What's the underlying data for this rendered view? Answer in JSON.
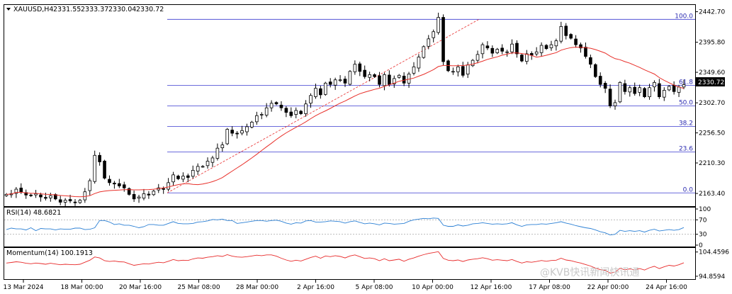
{
  "header": {
    "symbol": "XAUUSD,H4",
    "open": "2331.55",
    "high": "2333.37",
    "low": "2330.04",
    "close": "2330.72"
  },
  "price_tag": "2330.72",
  "rsi_label": "RSI(14) 48.6821",
  "momentum_label": "Momentum(14) 100.1913",
  "watermark": "@KVB快讯新闻快讯通",
  "colors": {
    "candle": "#000000",
    "ma": "#e8302a",
    "fib_line": "#3a3ad0",
    "fib_diagonal": "#e82a2a",
    "rsi": "#2a7fd4",
    "momentum": "#e82a2a",
    "grid": "#000000"
  },
  "chart_data": [
    {
      "type": "candlestick",
      "panel": "price",
      "title": "XAUUSD,H4",
      "y_ticks": [
        "2442.70",
        "2395.80",
        "2349.60",
        "2302.70",
        "2256.50",
        "2210.30",
        "2163.40"
      ],
      "ylim": [
        2145,
        2452
      ],
      "x_ticks": [
        "13 Mar 2024",
        "18 Mar 00:00",
        "20 Mar 16:00",
        "25 Mar 08:00",
        "28 Mar 00:00",
        "2 Apr 16:00",
        "5 Apr 08:00",
        "10 Apr 00:00",
        "12 Apr 16:00",
        "17 Apr 08:00",
        "22 Apr 00:00",
        "24 Apr 16:00"
      ],
      "close_path": [
        2162,
        2163,
        2170,
        2166,
        2161,
        2160,
        2163,
        2158,
        2156,
        2160,
        2155,
        2150,
        2153,
        2152,
        2150,
        2153,
        2166,
        2183,
        2222,
        2212,
        2187,
        2180,
        2178,
        2175,
        2172,
        2162,
        2155,
        2158,
        2163,
        2161,
        2167,
        2172,
        2170,
        2180,
        2192,
        2186,
        2190,
        2188,
        2199,
        2205,
        2205,
        2213,
        2218,
        2233,
        2238,
        2262,
        2256,
        2255,
        2260,
        2266,
        2273,
        2283,
        2285,
        2295,
        2302,
        2301,
        2295,
        2288,
        2283,
        2291,
        2286,
        2301,
        2314,
        2325,
        2315,
        2333,
        2331,
        2338,
        2338,
        2333,
        2351,
        2362,
        2351,
        2343,
        2346,
        2343,
        2331,
        2346,
        2331,
        2340,
        2345,
        2333,
        2347,
        2358,
        2373,
        2389,
        2401,
        2412,
        2434,
        2366,
        2352,
        2351,
        2358,
        2345,
        2361,
        2368,
        2377,
        2392,
        2387,
        2379,
        2385,
        2382,
        2381,
        2393,
        2378,
        2367,
        2378,
        2376,
        2381,
        2391,
        2386,
        2392,
        2398,
        2420,
        2406,
        2402,
        2392,
        2387,
        2374,
        2362,
        2343,
        2331,
        2325,
        2298,
        2303,
        2334,
        2320,
        2326,
        2317,
        2326,
        2312,
        2326,
        2334,
        2312,
        2322,
        2328,
        2320,
        2327,
        2330.72
      ],
      "ma_period": 20,
      "fibonacci": {
        "levels": [
          "100.0",
          "61.8",
          "50.0",
          "38.2",
          "23.6",
          "0.0"
        ],
        "prices": [
          2431.0,
          2329.4,
          2297.8,
          2266.4,
          2227.3,
          2164.3
        ],
        "swing_low": 2164.3,
        "swing_high": 2431.0
      }
    },
    {
      "type": "line",
      "panel": "rsi",
      "title": "RSI(14) 48.6821",
      "y_ticks": [
        "100",
        "70",
        "30",
        "0"
      ],
      "ylim": [
        0,
        100
      ],
      "levels": [
        70,
        30
      ],
      "values": [
        43,
        47,
        45,
        45,
        42,
        48,
        40,
        46,
        45,
        45,
        42,
        45,
        44,
        44,
        47,
        47,
        43,
        44,
        48,
        68,
        68,
        64,
        57,
        59,
        55,
        55,
        52,
        48,
        51,
        57,
        57,
        55,
        55,
        60,
        65,
        60,
        59,
        59,
        60,
        64,
        65,
        67,
        71,
        70,
        72,
        68,
        68,
        60,
        62,
        64,
        66,
        68,
        68,
        66,
        68,
        69,
        66,
        61,
        58,
        62,
        61,
        67,
        68,
        64,
        64,
        65,
        67,
        66,
        65,
        61,
        65,
        67,
        63,
        59,
        61,
        59,
        56,
        61,
        60,
        58,
        59,
        60,
        66,
        70,
        72,
        74,
        73,
        75,
        74,
        55,
        52,
        52,
        56,
        53,
        55,
        59,
        60,
        62,
        60,
        58,
        59,
        58,
        59,
        62,
        56,
        52,
        56,
        57,
        57,
        59,
        58,
        60,
        62,
        65,
        61,
        58,
        54,
        51,
        48,
        46,
        42,
        37,
        34,
        28,
        30,
        41,
        38,
        40,
        38,
        40,
        36,
        41,
        44,
        39,
        41,
        43,
        41,
        43,
        48.68
      ]
    },
    {
      "type": "line",
      "panel": "momentum",
      "title": "Momentum(14) 100.1913",
      "y_ticks": [
        "104.4596",
        "94.8594"
      ],
      "ylim": [
        94.0,
        105.5
      ],
      "values": [
        100.1,
        100.3,
        100.6,
        100.4,
        100.0,
        99.8,
        100.1,
        99.9,
        99.6,
        100.0,
        99.7,
        99.4,
        99.6,
        99.5,
        99.4,
        99.6,
        100.4,
        101.2,
        102.5,
        102.1,
        101.0,
        100.7,
        100.9,
        100.6,
        100.5,
        99.8,
        99.2,
        99.5,
        99.8,
        99.7,
        100.1,
        100.4,
        100.2,
        100.8,
        101.5,
        101.0,
        101.2,
        101.1,
        101.7,
        102.1,
        102.0,
        102.4,
        102.6,
        103.0,
        102.7,
        103.4,
        102.8,
        102.5,
        102.4,
        102.6,
        102.9,
        103.2,
        103.0,
        103.3,
        103.3,
        102.8,
        102.0,
        101.3,
        100.8,
        101.2,
        100.9,
        101.6,
        102.3,
        102.8,
        102.0,
        102.9,
        102.6,
        103.0,
        102.7,
        102.1,
        102.9,
        103.3,
        102.6,
        101.9,
        102.1,
        101.8,
        101.0,
        101.8,
        101.0,
        101.3,
        101.6,
        100.8,
        101.6,
        102.1,
        102.8,
        103.4,
        103.9,
        104.2,
        104.6,
        101.9,
        101.2,
        101.0,
        101.3,
        100.7,
        101.3,
        101.6,
        101.8,
        102.2,
        101.8,
        101.2,
        101.4,
        101.2,
        101.0,
        101.5,
        100.7,
        100.1,
        100.6,
        100.4,
        100.7,
        101.1,
        100.8,
        101.1,
        101.2,
        102.0,
        101.3,
        101.0,
        100.5,
        100.1,
        99.5,
        98.9,
        98.1,
        97.5,
        97.2,
        96.1,
        96.5,
        98.0,
        97.4,
        97.8,
        97.4,
        97.9,
        97.3,
        98.2,
        98.8,
        97.9,
        98.6,
        99.2,
        98.9,
        99.4,
        100.19
      ]
    }
  ]
}
